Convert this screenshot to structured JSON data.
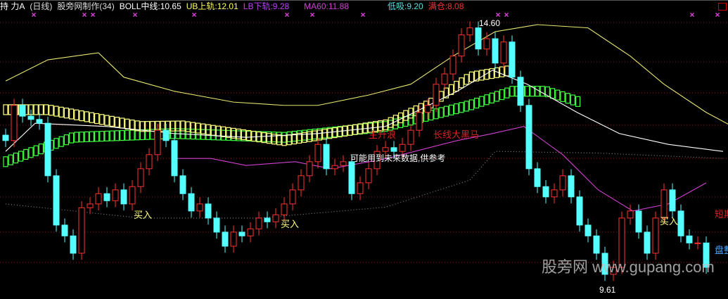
{
  "header": {
    "stock": "持 力A",
    "period": "(日线)",
    "indicator": "股旁网制作(34)",
    "boll_mid": "BOLL中线:10.65",
    "ub": "UB上轨:12.01",
    "lb": "LB下轨:9.28",
    "ma60": "MA60:11.88",
    "low_buy": "低吸:9.20",
    "full_pos": "满仓:8.08"
  },
  "annotations": {
    "main_rise": "主升浪",
    "dark_horse": "长线大黑马",
    "future_data": "可能用到未来数据,供参考",
    "buy1": "买入",
    "buy2": "买入",
    "buy3": "买入",
    "short_term": "短期",
    "consolidate": "盘整",
    "high_label": "14.60",
    "low_label": "9.61"
  },
  "watermark": "股旁网 www.gupang.com",
  "colors": {
    "up": "#ff3232",
    "down": "#54ffff",
    "boll_upper": "#e6e66e",
    "boll_mid": "#ffffff",
    "ma60": "#d040d0",
    "green_band": "#40ff40",
    "yellow_band": "#ffff80",
    "grid": "#8b1a1a",
    "marker": "#d040d0"
  },
  "chart_data": {
    "type": "candlestick",
    "ylim": [
      9.4,
      14.9
    ],
    "grid": true,
    "high": 14.6,
    "low": 9.61,
    "close": [
      12.33,
      12.98,
      12.78,
      12.72,
      12.65,
      11.68,
      10.77,
      10.57,
      10.25,
      11.09,
      11.16,
      11.35,
      11.22,
      11.42,
      11.16,
      11.48,
      11.81,
      12.07,
      12.52,
      12.33,
      11.68,
      11.35,
      11.03,
      11.16,
      10.9,
      10.64,
      10.38,
      10.64,
      10.57,
      10.7,
      10.9,
      10.83,
      10.96,
      11.16,
      11.42,
      11.68,
      11.94,
      12.26,
      11.81,
      11.87,
      11.94,
      11.35,
      11.55,
      11.81,
      12.13,
      12.2,
      12.13,
      12.26,
      12.52,
      12.85,
      12.98,
      13.37,
      13.56,
      13.89,
      14.28,
      14.41,
      14.02,
      14.21,
      13.76,
      14.15,
      13.5,
      12.98,
      11.81,
      11.48,
      11.29,
      11.42,
      11.68,
      11.29,
      10.77,
      10.57,
      10.25,
      9.86,
      9.99,
      10.9,
      11.03,
      10.64,
      10.25,
      10.9,
      11.42,
      11.03,
      10.57,
      10.44,
      10.44,
      9.99
    ],
    "lines": {
      "boll_upper": [
        [
          0,
          13.43
        ],
        [
          5,
          13.82
        ],
        [
          11,
          13.95
        ],
        [
          14,
          13.5
        ],
        [
          20,
          13.24
        ],
        [
          27,
          13.04
        ],
        [
          33,
          12.98
        ],
        [
          37,
          12.98
        ],
        [
          43,
          13.17
        ],
        [
          48,
          13.37
        ],
        [
          53,
          13.89
        ],
        [
          58,
          14.34
        ],
        [
          63,
          14.47
        ],
        [
          69,
          14.41
        ],
        [
          74,
          13.89
        ],
        [
          78,
          13.37
        ],
        [
          83,
          12.85
        ],
        [
          86,
          12.6
        ]
      ],
      "boll_mid": [
        [
          0,
          12.13
        ],
        [
          3.5,
          12.65
        ],
        [
          12,
          12.59
        ],
        [
          20,
          12.46
        ],
        [
          28.5,
          12.39
        ],
        [
          37,
          12.46
        ],
        [
          45,
          12.59
        ],
        [
          53.5,
          13.24
        ],
        [
          57.7,
          13.63
        ],
        [
          61.8,
          13.37
        ],
        [
          67.7,
          12.85
        ],
        [
          72.7,
          12.46
        ],
        [
          78.5,
          12.26
        ],
        [
          85,
          12.13
        ]
      ],
      "boll_lower": [
        [
          0,
          11.16
        ],
        [
          8,
          11.03
        ],
        [
          16,
          10.9
        ],
        [
          30,
          10.9
        ],
        [
          45,
          11.1
        ],
        [
          55,
          11.6
        ],
        [
          58,
          12.13
        ],
        [
          70,
          12.1
        ],
        [
          85,
          12.0
        ]
      ],
      "ma60": [
        [
          20,
          12.0
        ],
        [
          24.3,
          12.0
        ],
        [
          28.5,
          11.87
        ],
        [
          34.3,
          11.94
        ],
        [
          38.5,
          11.81
        ],
        [
          45.2,
          12.0
        ],
        [
          53.5,
          12.33
        ],
        [
          57.7,
          12.46
        ],
        [
          61.4,
          12.59
        ],
        [
          66,
          12.07
        ],
        [
          70.2,
          11.42
        ],
        [
          74.3,
          11.03
        ],
        [
          78.5,
          11.16
        ],
        [
          83,
          11.55
        ]
      ],
      "green_band": [
        [
          0,
          11.94
        ],
        [
          8,
          12.39
        ],
        [
          20,
          12.46
        ],
        [
          33,
          12.39
        ],
        [
          45,
          12.59
        ],
        [
          55,
          12.98
        ],
        [
          60,
          13.24
        ],
        [
          64,
          13.24
        ],
        [
          68,
          13.04
        ]
      ],
      "yellow_band": [
        [
          0,
          12.9
        ],
        [
          5,
          12.9
        ],
        [
          16,
          12.59
        ],
        [
          21,
          12.6
        ],
        [
          33,
          12.33
        ],
        [
          45,
          12.62
        ],
        [
          50,
          12.98
        ],
        [
          55,
          13.5
        ],
        [
          60,
          13.63
        ]
      ]
    },
    "signal_markers": [
      2,
      8,
      9,
      14,
      21,
      32,
      35,
      41,
      57,
      58,
      80,
      83
    ]
  }
}
